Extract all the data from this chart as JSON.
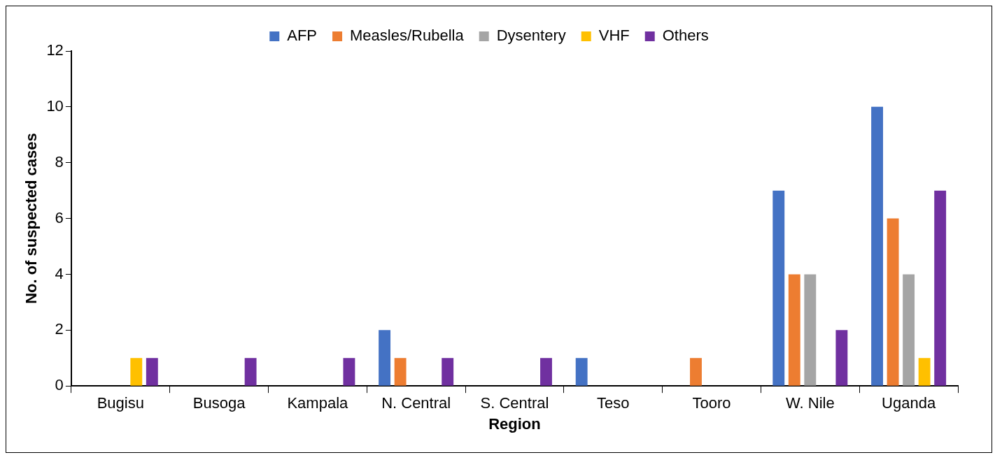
{
  "chart_data": {
    "type": "bar",
    "xlabel": "Region",
    "ylabel": "No. of suspected cases",
    "categories": [
      "Bugisu",
      "Busoga",
      "Kampala",
      "N. Central",
      "S. Central",
      "Teso",
      "Tooro",
      "W. Nile",
      "Uganda"
    ],
    "series": [
      {
        "name": "AFP",
        "color": "#4472c4",
        "values": [
          0,
          0,
          0,
          2,
          0,
          1,
          0,
          7,
          10
        ]
      },
      {
        "name": "Measles/Rubella",
        "color": "#ed7d31",
        "values": [
          0,
          0,
          0,
          1,
          0,
          0,
          1,
          4,
          6
        ]
      },
      {
        "name": "Dysentery",
        "color": "#a5a5a5",
        "values": [
          0,
          0,
          0,
          0,
          0,
          0,
          0,
          4,
          4
        ]
      },
      {
        "name": "VHF",
        "color": "#ffc000",
        "values": [
          1,
          0,
          0,
          0,
          0,
          0,
          0,
          0,
          1
        ]
      },
      {
        "name": "Others",
        "color": "#7030a0",
        "values": [
          1,
          1,
          1,
          1,
          1,
          0,
          0,
          2,
          7
        ]
      }
    ],
    "ylim": [
      0,
      12
    ],
    "yticks": [
      0,
      2,
      4,
      6,
      8,
      10,
      12
    ],
    "grid": false,
    "legend": "top"
  }
}
